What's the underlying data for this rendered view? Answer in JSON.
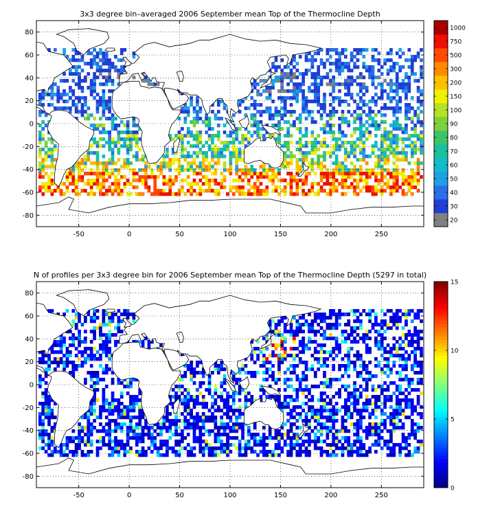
{
  "chart_data": [
    {
      "type": "heatmap",
      "title": "3x3 degree bin–averaged 2006 September mean Top of the Thermocline Depth",
      "xlabel": "",
      "ylabel": "",
      "xlim": [
        -92,
        292
      ],
      "ylim": [
        -90,
        90
      ],
      "x_ticks": [
        -50,
        0,
        50,
        100,
        150,
        200,
        250
      ],
      "y_ticks": [
        80,
        60,
        40,
        20,
        0,
        -20,
        -40,
        -60,
        -80
      ],
      "grid": true,
      "colorbar": {
        "scale": "categorical",
        "labels": [
          "20",
          "30",
          "40",
          "50",
          "60",
          "70",
          "80",
          "90",
          "100",
          "150",
          "200",
          "300",
          "500",
          "750",
          "1000"
        ],
        "colors": [
          "#808080",
          "#1f3fd6",
          "#2a6fe8",
          "#1ea0e6",
          "#12bccc",
          "#1bbf9b",
          "#3cc46b",
          "#7fd13b",
          "#b7e028",
          "#f0f000",
          "#ffc000",
          "#ff8a00",
          "#ff4a00",
          "#ee1000",
          "#a80000"
        ]
      },
      "bins": [
        {
          "lon_range": [
            -60,
            20
          ],
          "lat_range": [
            15,
            65
          ],
          "typical_value": "20-40",
          "description": "North Atlantic mostly deep blue"
        },
        {
          "lon_range": [
            120,
            280
          ],
          "lat_range": [
            10,
            65
          ],
          "typical_value": "20-40",
          "description": "North Pacific mostly blue with grey patches near Japan/Kuroshio"
        },
        {
          "lon_range": [
            -60,
            290
          ],
          "lat_range": [
            -30,
            -10
          ],
          "typical_value": "60-100",
          "description": "Subtropical southern band green-yellow"
        },
        {
          "lon_range": [
            -60,
            290
          ],
          "lat_range": [
            -60,
            -38
          ],
          "typical_value": "150-750",
          "description": "Southern Ocean band orange to red"
        }
      ]
    },
    {
      "type": "heatmap",
      "title": "N of profiles per 3x3 degree bin for 2006 September mean Top of the Thermocline Depth  (5297 in total)",
      "xlabel": "",
      "ylabel": "",
      "xlim": [
        -92,
        292
      ],
      "ylim": [
        -90,
        90
      ],
      "x_ticks": [
        -50,
        0,
        50,
        100,
        150,
        200,
        250
      ],
      "y_ticks": [
        80,
        60,
        40,
        20,
        0,
        -20,
        -40,
        -60,
        -80
      ],
      "grid": true,
      "total_profiles": 5297,
      "colorbar": {
        "scale": "continuous",
        "range": [
          0,
          15
        ],
        "ticks": [
          "15",
          "10",
          "5",
          "0"
        ],
        "colormap": "jet"
      },
      "bins": [
        {
          "lon_range": [
            -60,
            290
          ],
          "lat_range": [
            -62,
            65
          ],
          "typical_value": "1-3",
          "description": "Most bins dark blue (1-3 profiles)"
        },
        {
          "lon_range": [
            135,
            160
          ],
          "lat_range": [
            25,
            40
          ],
          "typical_value": "8-15",
          "description": "Kuroshio region with red/yellow high counts"
        }
      ]
    }
  ]
}
